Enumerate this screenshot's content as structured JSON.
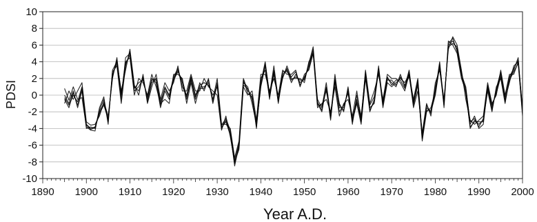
{
  "chart_data": {
    "type": "line",
    "xlabel": "Year A.D.",
    "ylabel": "PDSI",
    "xlim": [
      1890,
      2000
    ],
    "ylim": [
      -10,
      10
    ],
    "xticks": [
      1890,
      1900,
      1910,
      1920,
      1930,
      1940,
      1950,
      1960,
      1970,
      1980,
      1990,
      2000
    ],
    "yticks": [
      -10,
      -8,
      -6,
      -4,
      -2,
      0,
      2,
      4,
      6,
      8,
      10
    ],
    "grid": "horizontal",
    "legend": "none",
    "line_color": "#000000",
    "x": [
      1895,
      1896,
      1897,
      1898,
      1899,
      1900,
      1901,
      1902,
      1903,
      1904,
      1905,
      1906,
      1907,
      1908,
      1909,
      1910,
      1911,
      1912,
      1913,
      1914,
      1915,
      1916,
      1917,
      1918,
      1919,
      1920,
      1921,
      1922,
      1923,
      1924,
      1925,
      1926,
      1927,
      1928,
      1929,
      1930,
      1931,
      1932,
      1933,
      1934,
      1935,
      1936,
      1937,
      1938,
      1939,
      1940,
      1941,
      1942,
      1943,
      1944,
      1945,
      1946,
      1947,
      1948,
      1949,
      1950,
      1951,
      1952,
      1953,
      1954,
      1955,
      1956,
      1957,
      1958,
      1959,
      1960,
      1961,
      1962,
      1963,
      1964,
      1965,
      1966,
      1967,
      1968,
      1969,
      1970,
      1971,
      1972,
      1973,
      1974,
      1975,
      1976,
      1977,
      1978,
      1979,
      1980,
      1981,
      1982,
      1983,
      1984,
      1985,
      1986,
      1987,
      1988,
      1989,
      1990,
      1991,
      1992,
      1993,
      1994,
      1995,
      1996,
      1997,
      1998,
      1999,
      2000
    ],
    "series": [
      {
        "values": [
          -0.5,
          -1.5,
          0.3,
          -1.2,
          0.8,
          -3.5,
          -4.0,
          -3.8,
          -2.0,
          -1.0,
          -3.0,
          2.5,
          3.8,
          -0.5,
          4.5,
          5.0,
          0.5,
          1.0,
          2.0,
          -0.5,
          2.0,
          1.5,
          -1.5,
          0.5,
          -0.5,
          2.0,
          3.0,
          1.5,
          -0.5,
          2.0,
          -0.5,
          1.5,
          0.5,
          2.0,
          -1.0,
          1.5,
          -4.0,
          -3.0,
          -4.5,
          -8.5,
          -6.0,
          1.5,
          1.0,
          -1.0,
          -3.5,
          1.0,
          3.5,
          -0.5,
          3.0,
          -1.0,
          2.5,
          3.0,
          1.5,
          2.5,
          1.5,
          2.0,
          3.5,
          5.5,
          -1.0,
          -2.0,
          1.0,
          -3.0,
          2.0,
          -1.0,
          -2.0,
          1.0,
          -3.0,
          -1.0,
          -3.5,
          2.0,
          -2.0,
          -0.5,
          3.5,
          -1.0,
          2.0,
          1.5,
          1.0,
          2.5,
          1.0,
          3.0,
          -1.0,
          1.5,
          -5.5,
          -2.0,
          -1.5,
          0.5,
          4.0,
          -1.5,
          6.5,
          6.0,
          5.0,
          2.0,
          0.5,
          -4.0,
          -3.0,
          -3.5,
          -3.0,
          0.5,
          -2.0,
          1.0,
          2.0,
          -1.0,
          2.0,
          3.0,
          4.5,
          -2.0
        ]
      },
      {
        "values": [
          0.8,
          -0.6,
          1.0,
          -0.5,
          -0.3,
          -3.8,
          -4.2,
          -4.3,
          -1.5,
          -0.2,
          -3.5,
          3.0,
          4.0,
          0.5,
          3.0,
          5.5,
          1.2,
          0.0,
          2.5,
          -1.0,
          1.0,
          2.5,
          -0.5,
          1.5,
          0.5,
          1.5,
          3.5,
          0.5,
          0.5,
          2.5,
          0.5,
          0.5,
          2.0,
          1.0,
          0.5,
          0.0,
          -4.2,
          -2.5,
          -5.0,
          -8.0,
          -6.5,
          1.0,
          0.0,
          0.5,
          -3.0,
          2.5,
          2.5,
          0.5,
          2.0,
          0.0,
          3.0,
          2.5,
          2.5,
          3.0,
          1.0,
          2.5,
          3.0,
          5.0,
          -1.5,
          -1.0,
          -0.5,
          -2.0,
          1.0,
          -2.5,
          -1.0,
          -0.5,
          -2.5,
          0.5,
          -3.0,
          3.0,
          -1.0,
          0.5,
          2.5,
          -0.5,
          2.5,
          2.0,
          2.0,
          1.5,
          0.5,
          2.5,
          -1.5,
          0.5,
          -4.5,
          -1.0,
          -2.5,
          1.5,
          3.0,
          -0.5,
          5.5,
          7.0,
          6.0,
          3.0,
          -0.5,
          -3.0,
          -3.5,
          -3.0,
          -2.5,
          1.5,
          -1.0,
          0.0,
          3.0,
          0.0,
          2.5,
          2.5,
          4.0,
          -1.5
        ]
      },
      {
        "values": [
          -1.0,
          0.5,
          -0.5,
          0.5,
          1.5,
          -3.2,
          -3.6,
          -3.5,
          -2.5,
          -0.8,
          -2.5,
          2.0,
          4.5,
          0.0,
          4.0,
          4.5,
          0.0,
          2.0,
          1.5,
          0.0,
          2.5,
          1.0,
          -1.0,
          -0.5,
          -1.0,
          2.5,
          2.5,
          2.0,
          -1.0,
          1.5,
          -1.0,
          1.0,
          1.0,
          1.5,
          -0.5,
          2.0,
          -3.5,
          -3.5,
          -4.0,
          -7.5,
          -5.5,
          2.0,
          0.5,
          0.0,
          -4.0,
          1.5,
          4.0,
          0.0,
          3.5,
          -0.5,
          2.0,
          3.5,
          2.0,
          2.0,
          2.0,
          1.5,
          4.0,
          5.0,
          -0.5,
          -1.5,
          1.5,
          -2.5,
          2.5,
          -1.5,
          -1.5,
          0.5,
          -3.5,
          0.0,
          -2.5,
          2.5,
          -1.5,
          -1.0,
          3.0,
          -1.5,
          1.5,
          1.0,
          1.5,
          2.0,
          1.5,
          2.5,
          -0.5,
          2.0,
          -5.0,
          -1.5,
          -2.0,
          0.0,
          3.5,
          -1.0,
          6.0,
          6.5,
          5.5,
          2.5,
          1.0,
          -3.5,
          -2.5,
          -4.0,
          -3.5,
          1.0,
          -1.5,
          0.5,
          2.5,
          -0.5,
          1.5,
          3.5,
          4.0,
          -2.5
        ]
      },
      {
        "values": [
          0.0,
          -1.0,
          0.5,
          -1.5,
          0.5,
          -4.0,
          -3.8,
          -4.0,
          -1.8,
          -0.5,
          -3.2,
          2.8,
          3.5,
          -1.0,
          3.5,
          5.2,
          1.0,
          0.5,
          2.2,
          -0.8,
          1.5,
          2.0,
          -1.2,
          1.0,
          0.0,
          2.2,
          3.2,
          1.0,
          0.0,
          2.2,
          0.0,
          1.2,
          1.5,
          1.2,
          0.0,
          1.0,
          -3.8,
          -3.2,
          -4.8,
          -8.2,
          -6.2,
          1.2,
          0.8,
          -0.5,
          -3.2,
          2.0,
          3.0,
          -0.2,
          2.5,
          -0.5,
          2.8,
          2.8,
          2.2,
          2.8,
          1.2,
          2.2,
          3.2,
          5.2,
          -1.2,
          -1.2,
          0.5,
          -2.2,
          1.5,
          -2.0,
          -1.2,
          0.2,
          -2.8,
          -0.5,
          -3.2,
          2.2,
          -1.2,
          -0.2,
          2.8,
          -0.8,
          2.2,
          1.2,
          1.8,
          1.8,
          0.8,
          2.8,
          -1.2,
          1.2,
          -5.2,
          -1.2,
          -2.2,
          1.0,
          3.2,
          -1.2,
          6.2,
          6.8,
          5.2,
          2.8,
          0.2,
          -3.8,
          -3.2,
          -3.2,
          -3.2,
          1.2,
          -1.2,
          0.2,
          2.2,
          -0.2,
          2.2,
          3.2,
          4.2,
          -1.8
        ]
      },
      {
        "values": [
          -0.3,
          -1.2,
          0.0,
          -0.8,
          1.0,
          -3.6,
          -4.1,
          -3.9,
          -2.2,
          -1.2,
          -2.8,
          2.2,
          4.2,
          0.2,
          3.8,
          4.8,
          0.8,
          1.5,
          1.8,
          -0.2,
          1.8,
          1.8,
          -0.8,
          0.8,
          -0.2,
          1.8,
          2.8,
          1.8,
          -0.2,
          1.8,
          -0.2,
          0.8,
          0.8,
          1.8,
          -0.8,
          1.2,
          -3.6,
          -2.8,
          -4.2,
          -7.8,
          -5.8,
          1.8,
          0.2,
          -0.2,
          -3.8,
          1.2,
          3.8,
          0.2,
          2.8,
          -0.8,
          2.2,
          3.2,
          1.8,
          2.2,
          1.8,
          1.8,
          3.8,
          5.8,
          -0.8,
          -1.8,
          0.8,
          -2.8,
          1.8,
          -1.2,
          -1.8,
          0.8,
          -3.2,
          -0.8,
          -2.8,
          2.8,
          -1.8,
          -0.8,
          3.2,
          -1.2,
          1.8,
          1.8,
          1.2,
          2.2,
          1.2,
          2.2,
          -0.8,
          1.8,
          -4.8,
          -1.8,
          -1.8,
          0.2,
          3.8,
          -0.8,
          5.8,
          6.2,
          5.8,
          2.2,
          0.8,
          -3.2,
          -2.8,
          -3.8,
          -2.8,
          0.8,
          -1.8,
          0.8,
          2.8,
          -0.8,
          1.8,
          2.8,
          3.8,
          -2.2
        ]
      }
    ]
  }
}
